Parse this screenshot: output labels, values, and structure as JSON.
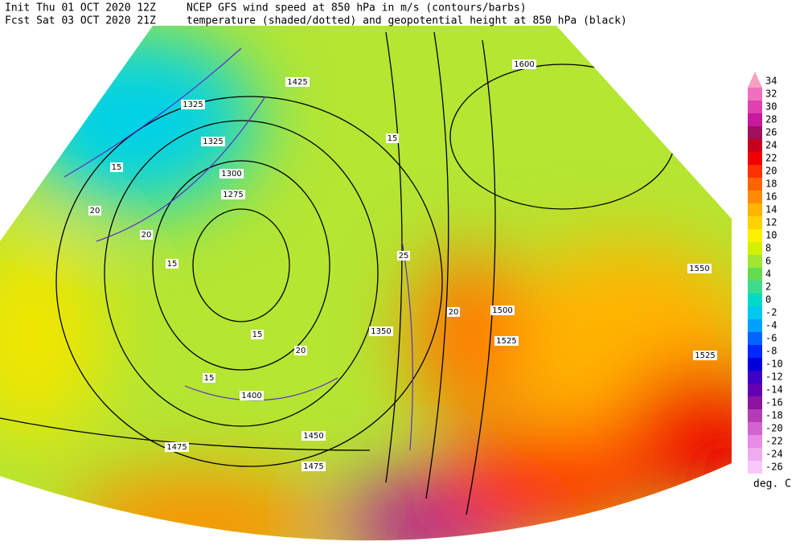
{
  "header": {
    "init": "Init  Thu 01 OCT 2020 12Z",
    "fcst": "Fcst Sat 03 OCT 2020 21Z",
    "title1": "NCEP GFS wind speed at 850 hPa in m/s (contours/barbs)",
    "title2": "temperature (shaded/dotted) and geopotential height at 850 hPa (black)"
  },
  "colorbar": {
    "unit": "deg. C",
    "levels": [
      34,
      32,
      30,
      28,
      26,
      24,
      22,
      20,
      18,
      16,
      14,
      12,
      10,
      8,
      6,
      4,
      2,
      0,
      -2,
      -4,
      -6,
      -8,
      -10,
      -12,
      -14,
      -16,
      -18,
      -20,
      -22,
      -24,
      -26
    ],
    "colors": [
      "#f8a0c0",
      "#f070c0",
      "#e040b0",
      "#c8189c",
      "#a0105c",
      "#c80020",
      "#f00000",
      "#ff3000",
      "#ff6400",
      "#ff8c00",
      "#ffb400",
      "#ffd200",
      "#fff000",
      "#d2f000",
      "#a0e632",
      "#64dc50",
      "#3cdc8c",
      "#00dcc8",
      "#00c8f0",
      "#00a0ff",
      "#0064ff",
      "#0028ff",
      "#0000dc",
      "#3c00c8",
      "#6400b4",
      "#8c14a0",
      "#b43cb4",
      "#d264d2",
      "#e68ce6",
      "#f0aaf0",
      "#f8c8f8"
    ]
  },
  "map": {
    "height_labels": [
      1325,
      1325,
      1300,
      1275,
      1425,
      1600,
      1550,
      1525,
      1500,
      1450,
      1475,
      1475,
      1400,
      1350,
      1525
    ],
    "wind_labels": [
      20,
      15,
      20,
      15,
      15,
      20,
      15,
      25,
      15,
      20
    ]
  }
}
